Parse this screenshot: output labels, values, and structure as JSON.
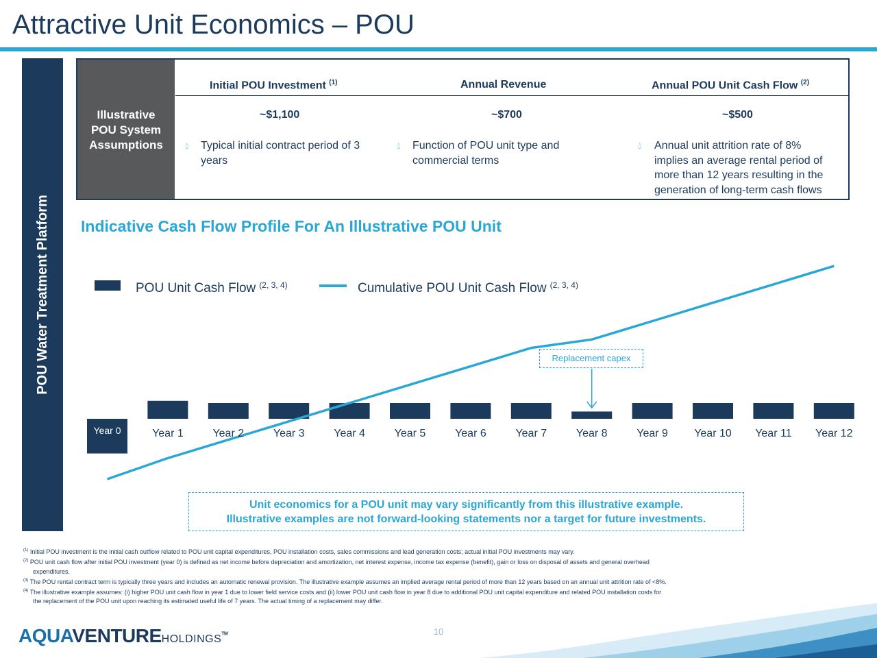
{
  "title": "Attractive Unit Economics – POU",
  "side_label": "POU Water Treatment Platform",
  "assumptions": {
    "row_label_lines": [
      "Illustrative",
      "POU System",
      "Assumptions"
    ],
    "columns": [
      {
        "header": "Initial POU Investment",
        "header_sup": "(1)",
        "value": "~$1,100",
        "bullet_lines": [
          "Typical initial contract period of 3",
          "years"
        ]
      },
      {
        "header": "Annual Revenue",
        "header_sup": "",
        "value": "~$700",
        "bullet_lines": [
          "Function of POU unit type and",
          "commercial terms"
        ]
      },
      {
        "header": "Annual POU Unit Cash Flow",
        "header_sup": "(2)",
        "value": "~$500",
        "bullet_lines": [
          "Annual unit attrition rate of 8%",
          "implies an average rental period of",
          "more than 12 years resulting in the",
          "generation of long-term cash flows"
        ]
      }
    ],
    "bullet_icon": "water-drop-icon"
  },
  "chart_heading": "Indicative Cash Flow Profile For An Illustrative POU Unit",
  "chart_data": {
    "type": "bar",
    "categories": [
      "Year 0",
      "Year 1",
      "Year 2",
      "Year 3",
      "Year 4",
      "Year 5",
      "Year 6",
      "Year 7",
      "Year 8",
      "Year 9",
      "Year 10",
      "Year 11",
      "Year 12"
    ],
    "series": [
      {
        "name": "POU Unit Cash Flow",
        "name_sup": "(2, 3, 4)",
        "type": "bar",
        "color": "#1b3a5c",
        "values": [
          -1100,
          570,
          500,
          500,
          500,
          500,
          500,
          500,
          230,
          500,
          500,
          500,
          500
        ]
      },
      {
        "name": "Cumulative POU Unit Cash Flow",
        "name_sup": "(2, 3, 4)",
        "type": "line",
        "color": "#2aa7d6",
        "values": [
          -1100,
          -530,
          -30,
          470,
          970,
          1470,
          1970,
          2470,
          2700,
          3200,
          3700,
          4200,
          4700
        ]
      }
    ],
    "legend_position": "top-left",
    "annotation": "Replacement capex",
    "annotation_category": "Year 8",
    "axis_labels_shown": false,
    "grid": false
  },
  "disclaimer_lines": [
    "Unit economics for a POU unit may vary significantly from this illustrative example.",
    "Illustrative examples are not forward-looking statements nor a target for future investments."
  ],
  "footnotes": [
    {
      "mark": "(1)",
      "lines": [
        "Initial POU investment is the initial cash outflow related to POU unit capital expenditures, POU installation costs, sales commissions and lead generation costs; actual initial POU investments may vary."
      ]
    },
    {
      "mark": "(2)",
      "lines": [
        "POU unit cash flow after initial POU investment (year 0) is defined as net income before depreciation and amortization, net interest expense, income tax expense (benefit), gain or loss on disposal of assets and general overhead",
        "expenditures."
      ]
    },
    {
      "mark": "(3)",
      "lines": [
        "The POU rental contract term is typically three years and includes an automatic renewal provision. The illustrative example assumes an implied average rental period of more than 12 years based on an annual unit attrition rate of <8%."
      ]
    },
    {
      "mark": "(4)",
      "lines": [
        "The illustrative example assumes: (i) higher POU unit cash flow in year 1 due to lower field service costs and (ii) lower POU unit cash flow in year 8 due to additional POU unit capital expenditure and related POU installation costs for",
        "the replacement of the POU unit upon reaching its estimated useful life of 7 years. The actual timing of a replacement may differ."
      ]
    }
  ],
  "page_number": "10",
  "logo": {
    "part1": "AQUA",
    "part2": "VENTURE",
    "part3": "HOLDINGS",
    "tm": "TM"
  },
  "colors": {
    "navy": "#1b3a5c",
    "accent": "#2aa7d6",
    "gray_cell": "#58595b"
  }
}
